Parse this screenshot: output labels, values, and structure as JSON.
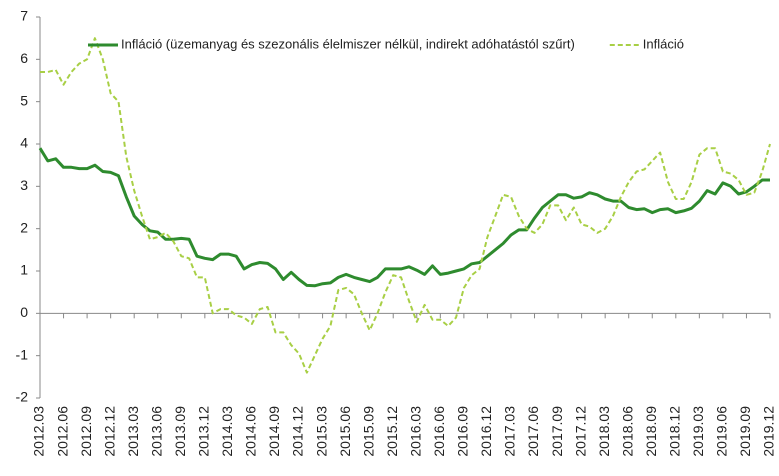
{
  "chart_data": {
    "type": "line",
    "categories": [
      "2012.03",
      null,
      null,
      "2012.06",
      null,
      null,
      "2012.09",
      null,
      null,
      "2012.12",
      null,
      null,
      "2013.03",
      null,
      null,
      "2013.06",
      null,
      null,
      "2013.09",
      null,
      null,
      "2013.12",
      null,
      null,
      "2014.03",
      null,
      null,
      "2014.06",
      null,
      null,
      "2014.09",
      null,
      null,
      "2014.12",
      null,
      null,
      "2015.03",
      null,
      null,
      "2015.06",
      null,
      null,
      "2015.09",
      null,
      null,
      "2015.12",
      null,
      null,
      "2016.03",
      null,
      null,
      "2016.06",
      null,
      null,
      "2016.09",
      null,
      null,
      "2016.12",
      null,
      null,
      "2017.03",
      null,
      null,
      "2017.06",
      null,
      null,
      "2017.09",
      null,
      null,
      "2017.12",
      null,
      null,
      "2018.03",
      null,
      null,
      "2018.06",
      null,
      null,
      "2018.09",
      null,
      null,
      "2018.12",
      null,
      null,
      "2019.03",
      null,
      null,
      "2019.06",
      null,
      null,
      "2019.09",
      null,
      null,
      "2019.12"
    ],
    "series": [
      {
        "name": "Infláció (üzemanyag és szezonális élelmiszer nélkül, indirekt adóhatástól szűrt)",
        "color": "#2e8b2e",
        "dashed": false,
        "values": [
          3.9,
          3.6,
          3.65,
          3.45,
          3.45,
          3.42,
          3.42,
          3.5,
          3.35,
          3.33,
          3.25,
          2.75,
          2.3,
          2.1,
          1.95,
          1.92,
          1.75,
          1.75,
          1.77,
          1.75,
          1.35,
          1.3,
          1.27,
          1.4,
          1.4,
          1.35,
          1.05,
          1.15,
          1.2,
          1.18,
          1.05,
          0.8,
          0.97,
          0.8,
          0.66,
          0.65,
          0.7,
          0.72,
          0.85,
          0.92,
          0.85,
          0.8,
          0.75,
          0.85,
          1.05,
          1.05,
          1.05,
          1.1,
          1.02,
          0.92,
          1.12,
          0.92,
          0.95,
          1.0,
          1.05,
          1.17,
          1.2,
          1.35,
          1.5,
          1.65,
          1.85,
          1.97,
          1.97,
          2.25,
          2.5,
          2.65,
          2.8,
          2.8,
          2.72,
          2.75,
          2.85,
          2.8,
          2.7,
          2.65,
          2.65,
          2.5,
          2.45,
          2.47,
          2.38,
          2.45,
          2.47,
          2.38,
          2.42,
          2.48,
          2.65,
          2.9,
          2.82,
          3.08,
          3.0,
          2.82,
          2.87,
          3.0,
          3.15,
          3.15
        ]
      },
      {
        "name": "Infláció",
        "color": "#a8cf45",
        "dashed": true,
        "values": [
          5.7,
          5.7,
          5.75,
          5.4,
          5.7,
          5.9,
          6.0,
          6.5,
          6.0,
          5.2,
          5.0,
          3.7,
          2.9,
          2.3,
          1.75,
          1.8,
          1.9,
          1.7,
          1.35,
          1.3,
          0.85,
          0.85,
          0.0,
          0.1,
          0.1,
          -0.05,
          -0.1,
          -0.25,
          0.1,
          0.15,
          -0.45,
          -0.45,
          -0.75,
          -0.95,
          -1.4,
          -1.0,
          -0.6,
          -0.3,
          0.55,
          0.6,
          0.45,
          0.0,
          -0.4,
          0.0,
          0.5,
          0.9,
          0.85,
          0.3,
          -0.2,
          0.2,
          -0.15,
          -0.15,
          -0.3,
          -0.1,
          0.6,
          0.9,
          1.05,
          1.8,
          2.3,
          2.8,
          2.75,
          2.3,
          2.0,
          1.9,
          2.1,
          2.55,
          2.55,
          2.2,
          2.5,
          2.1,
          2.05,
          1.9,
          2.0,
          2.3,
          2.75,
          3.1,
          3.35,
          3.4,
          3.6,
          3.8,
          3.1,
          2.7,
          2.7,
          3.1,
          3.75,
          3.9,
          3.9,
          3.35,
          3.3,
          3.15,
          2.8,
          2.85,
          3.35,
          4.0
        ]
      }
    ],
    "ylim": [
      -2,
      7
    ],
    "yticks": [
      -2,
      -1,
      0,
      1,
      2,
      3,
      4,
      5,
      6,
      7
    ],
    "grid": false,
    "legend": "top"
  }
}
